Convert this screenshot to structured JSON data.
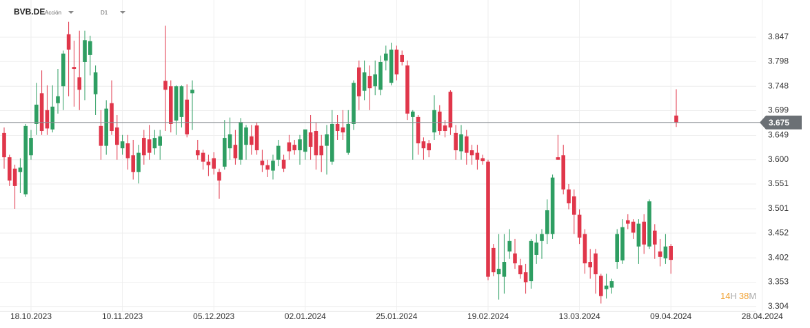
{
  "header": {
    "symbol": "BVB.DE",
    "instrument_type": "Acción",
    "timeframe": "D1"
  },
  "chart_data": {
    "type": "candlestick",
    "up_color": "#2e9e62",
    "down_color": "#e0364a",
    "grid": true,
    "ylim": [
      3.294,
      3.922
    ],
    "yticks": [
      3.304,
      3.353,
      3.402,
      3.452,
      3.501,
      3.551,
      {
        "value": 3.6,
        "label": "3.600"
      },
      3.649,
      3.699,
      3.748,
      3.798,
      3.847
    ],
    "current_price": 3.675,
    "categories": [
      null,
      null,
      null,
      null,
      null,
      "18.10.2023",
      null,
      null,
      null,
      null,
      null,
      null,
      null,
      null,
      null,
      null,
      null,
      null,
      null,
      null,
      null,
      null,
      "10.11.2023",
      null,
      null,
      null,
      null,
      null,
      null,
      null,
      null,
      null,
      null,
      null,
      null,
      null,
      null,
      null,
      null,
      "05.12.2023",
      null,
      null,
      null,
      null,
      null,
      null,
      null,
      null,
      null,
      null,
      null,
      null,
      null,
      null,
      null,
      null,
      "02.01.2024",
      null,
      null,
      null,
      null,
      null,
      null,
      null,
      null,
      null,
      null,
      null,
      null,
      null,
      null,
      null,
      null,
      "25.01.2024",
      null,
      null,
      null,
      null,
      null,
      null,
      null,
      null,
      null,
      null,
      null,
      null,
      null,
      null,
      null,
      null,
      "19.02.2024",
      null,
      null,
      null,
      null,
      null,
      null,
      null,
      null,
      null,
      null,
      null,
      null,
      null,
      null,
      null,
      null,
      "13.03.2024",
      null,
      null,
      null,
      null,
      null,
      null,
      null,
      null,
      null,
      null,
      null,
      null,
      null,
      null,
      null,
      null,
      "09.04.2024",
      null,
      null,
      null,
      null,
      null,
      null,
      null,
      null,
      null,
      null,
      null,
      null,
      null,
      null,
      null,
      null,
      "28.04.2024"
    ],
    "open": [
      3.654,
      3.605,
      3.582,
      3.575,
      3.53,
      3.609,
      3.672,
      3.734,
      3.7,
      3.661,
      3.714,
      3.748,
      3.853,
      3.787,
      3.766,
      3.797,
      3.811,
      3.732,
      3.668,
      3.628,
      3.714,
      3.665,
      3.623,
      3.633,
      3.609,
      3.575,
      3.644,
      3.641,
      3.623,
      3.628,
      3.759,
      3.748,
      3.679,
      3.686,
      3.721,
      3.734,
      3.619,
      3.614,
      3.596,
      3.603,
      3.575,
      3.586,
      3.623,
      3.63,
      3.6,
      3.63,
      3.647,
      3.669,
      3.598,
      3.589,
      3.578,
      3.6,
      3.6,
      3.635,
      3.63,
      3.619,
      3.616,
      3.655,
      3.658,
      3.628,
      3.628,
      3.596,
      3.672,
      3.665,
      3.614,
      3.672,
      3.786,
      3.739,
      3.769,
      3.748,
      3.741,
      3.8,
      3.755,
      3.822,
      3.811,
      3.79,
      3.686,
      3.686,
      3.637,
      3.633,
      3.655,
      3.697,
      3.669,
      3.737,
      3.654,
      3.617,
      3.647,
      3.619,
      3.614,
      3.603,
      3.596,
      3.422,
      3.369,
      3.364,
      3.415,
      3.411,
      3.387,
      3.373,
      3.355,
      3.408,
      3.436,
      3.45,
      3.45,
      3.605,
      3.609,
      3.54,
      3.526,
      3.489,
      3.45,
      3.394,
      3.411,
      3.366,
      3.339,
      3.342,
      3.394,
      3.397,
      3.478,
      3.475,
      3.425,
      3.475,
      3.425,
      3.457,
      3.415,
      3.401,
      3.426,
      3.689,
      null,
      null,
      null,
      null,
      null,
      null,
      null,
      null,
      null,
      null,
      null,
      null,
      null,
      null,
      null,
      null
    ],
    "high": [
      3.665,
      3.61,
      3.59,
      3.603,
      3.672,
      3.66,
      3.755,
      3.78,
      3.75,
      3.75,
      3.783,
      3.82,
      3.878,
      3.84,
      3.86,
      3.86,
      3.85,
      3.79,
      3.7,
      3.72,
      3.76,
      3.69,
      3.65,
      3.65,
      3.64,
      3.63,
      3.66,
      3.67,
      3.66,
      3.66,
      3.87,
      3.76,
      3.75,
      3.75,
      3.752,
      3.76,
      3.64,
      3.62,
      3.61,
      3.615,
      3.582,
      3.68,
      3.685,
      3.66,
      3.684,
      3.67,
      3.67,
      3.675,
      3.62,
      3.6,
      3.61,
      3.64,
      3.61,
      3.65,
      3.64,
      3.65,
      3.66,
      3.69,
      3.675,
      3.65,
      3.67,
      3.7,
      3.69,
      3.7,
      3.7,
      3.76,
      3.8,
      3.8,
      3.79,
      3.8,
      3.81,
      3.83,
      3.836,
      3.83,
      3.82,
      3.8,
      3.7,
      3.69,
      3.645,
      3.64,
      3.73,
      3.71,
      3.68,
      3.74,
      3.67,
      3.67,
      3.66,
      3.63,
      3.63,
      3.61,
      3.6,
      3.43,
      3.45,
      3.45,
      3.46,
      3.44,
      3.4,
      3.39,
      3.44,
      3.45,
      3.46,
      3.52,
      3.57,
      3.65,
      3.63,
      3.551,
      3.54,
      3.5,
      3.46,
      3.42,
      3.42,
      3.37,
      3.37,
      3.36,
      3.46,
      3.48,
      3.49,
      3.48,
      3.48,
      3.49,
      3.52,
      3.47,
      3.44,
      3.45,
      3.43,
      3.742,
      null,
      null,
      null,
      null,
      null,
      null,
      null,
      null,
      null,
      null,
      null,
      null,
      null,
      null,
      null,
      null
    ],
    "low": [
      3.582,
      3.547,
      3.501,
      3.533,
      3.525,
      3.6,
      3.65,
      3.65,
      3.65,
      3.655,
      3.693,
      3.7,
      3.728,
      3.707,
      3.7,
      3.72,
      3.77,
      3.69,
      3.6,
      3.61,
      3.65,
      3.6,
      3.61,
      3.58,
      3.56,
      3.552,
      3.59,
      3.6,
      3.61,
      3.6,
      3.658,
      3.655,
      3.65,
      3.665,
      3.645,
      3.66,
      3.6,
      3.58,
      3.567,
      3.57,
      3.521,
      3.58,
      3.6,
      3.59,
      3.59,
      3.6,
      3.61,
      3.61,
      3.575,
      3.565,
      3.56,
      3.587,
      3.575,
      3.6,
      3.61,
      3.59,
      3.6,
      3.6,
      3.58,
      3.575,
      3.57,
      3.59,
      3.64,
      3.64,
      3.61,
      3.66,
      3.7,
      3.72,
      3.7,
      3.73,
      3.73,
      3.78,
      3.75,
      3.76,
      3.79,
      3.68,
      3.6,
      3.61,
      3.6,
      3.605,
      3.64,
      3.65,
      3.645,
      3.65,
      3.6,
      3.6,
      3.59,
      3.59,
      3.58,
      3.59,
      3.357,
      3.365,
      3.318,
      3.33,
      3.4,
      3.38,
      3.36,
      3.33,
      3.34,
      3.39,
      3.4,
      3.43,
      3.44,
      3.6,
      3.53,
      3.5,
      3.45,
      3.43,
      3.37,
      3.36,
      3.33,
      3.31,
      3.32,
      3.33,
      3.38,
      3.39,
      3.46,
      3.44,
      3.39,
      3.41,
      3.42,
      3.4,
      3.385,
      3.39,
      3.37,
      3.666,
      null,
      null,
      null,
      null,
      null,
      null,
      null,
      null,
      null,
      null,
      null,
      null,
      null,
      null,
      null,
      null
    ],
    "close": [
      3.605,
      3.558,
      3.547,
      3.584,
      3.668,
      3.644,
      3.711,
      3.658,
      3.663,
      3.707,
      3.728,
      3.814,
      3.822,
      3.783,
      3.741,
      3.841,
      3.839,
      3.776,
      3.628,
      3.703,
      3.658,
      3.63,
      3.637,
      3.603,
      3.575,
      3.614,
      3.609,
      3.614,
      3.644,
      3.647,
      3.741,
      3.672,
      3.748,
      3.748,
      3.651,
      3.741,
      3.609,
      3.596,
      3.589,
      3.582,
      3.558,
      3.644,
      3.651,
      3.603,
      3.676,
      3.665,
      3.63,
      3.619,
      3.589,
      3.58,
      3.598,
      3.628,
      3.582,
      3.617,
      3.619,
      3.641,
      3.661,
      3.626,
      3.609,
      3.609,
      3.651,
      3.672,
      3.658,
      3.655,
      3.672,
      3.755,
      3.728,
      3.776,
      3.744,
      3.772,
      3.797,
      3.814,
      3.822,
      3.772,
      3.797,
      3.693,
      3.697,
      3.633,
      3.623,
      3.619,
      3.7,
      3.658,
      3.658,
      3.665,
      3.619,
      3.651,
      3.614,
      3.609,
      3.6,
      3.597,
      3.364,
      3.373,
      3.38,
      3.394,
      3.436,
      3.391,
      3.369,
      3.353,
      3.436,
      3.433,
      3.45,
      3.498,
      3.564,
      3.6,
      3.54,
      3.512,
      3.489,
      3.443,
      3.391,
      3.383,
      3.369,
      3.325,
      3.346,
      3.355,
      3.45,
      3.464,
      3.471,
      3.453,
      3.471,
      3.429,
      3.516,
      3.429,
      3.404,
      3.425,
      3.398,
      3.675,
      null,
      null,
      null,
      null,
      null,
      null,
      null,
      null,
      null,
      null,
      null,
      null,
      null,
      null,
      null,
      null
    ],
    "countdown": {
      "hours": 14,
      "hours_unit": "H",
      "minutes": 38,
      "minutes_unit": "M"
    }
  }
}
